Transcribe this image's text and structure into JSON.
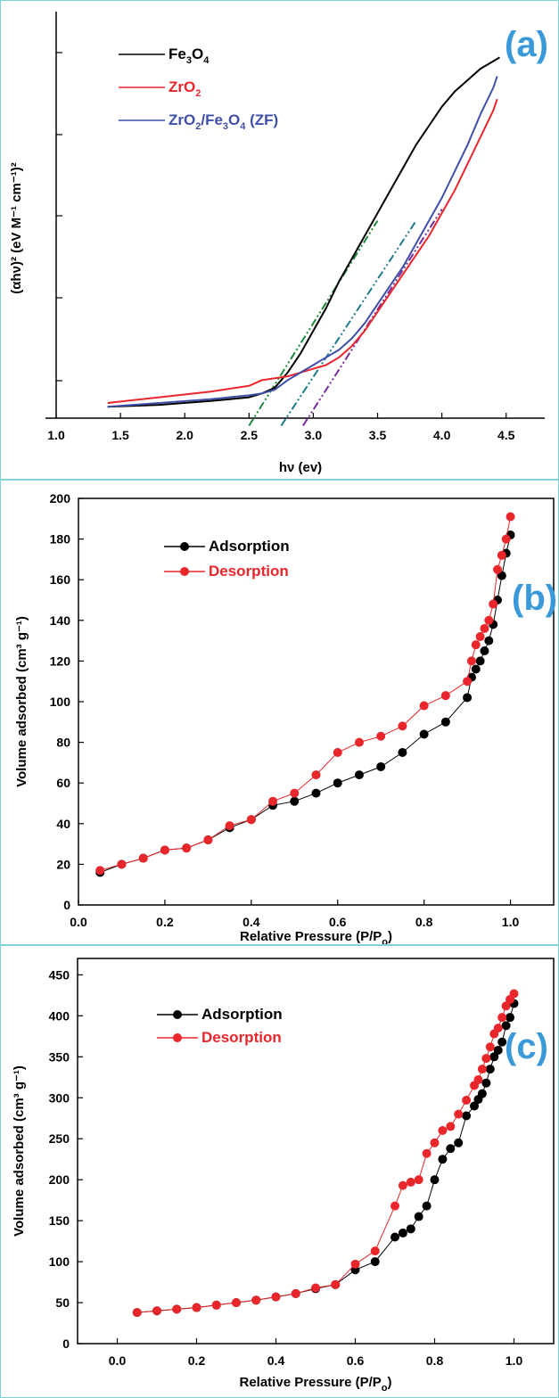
{
  "figure": {
    "panels": [
      "(a)",
      "(b)",
      "(c)"
    ]
  },
  "chart_data": [
    {
      "type": "line",
      "panel_label": "(a)",
      "xlabel": "hν (ev)",
      "ylabel": "(αhν)² (eV M⁻¹ cm⁻¹)²",
      "xlim": [
        1.0,
        4.8
      ],
      "x_ticks": [
        "1.0",
        "1.5",
        "2.0",
        "2.5",
        "3.0",
        "3.5",
        "4.0",
        "4.5"
      ],
      "y_ticks": [],
      "legend_position": "top-left",
      "series": [
        {
          "name": "Fe3O4",
          "color": "#000000",
          "x": [
            1.4,
            1.8,
            2.2,
            2.5,
            2.6,
            2.7,
            2.8,
            2.9,
            3.0,
            3.1,
            3.2,
            3.3,
            3.4,
            3.5,
            3.6,
            3.7,
            3.8,
            3.9,
            4.0,
            4.1,
            4.2,
            4.3,
            4.4,
            4.45
          ],
          "y": [
            0.03,
            0.035,
            0.045,
            0.055,
            0.065,
            0.08,
            0.12,
            0.17,
            0.23,
            0.29,
            0.36,
            0.42,
            0.48,
            0.54,
            0.6,
            0.66,
            0.72,
            0.77,
            0.82,
            0.86,
            0.89,
            0.92,
            0.94,
            0.95
          ]
        },
        {
          "name": "ZrO2",
          "color": "#e8262b",
          "x": [
            1.4,
            1.8,
            2.2,
            2.5,
            2.6,
            2.7,
            2.8,
            2.9,
            3.0,
            3.1,
            3.2,
            3.3,
            3.4,
            3.5,
            3.6,
            3.7,
            3.8,
            3.9,
            4.0,
            4.1,
            4.2,
            4.3,
            4.4,
            4.43
          ],
          "y": [
            0.04,
            0.055,
            0.07,
            0.085,
            0.1,
            0.105,
            0.11,
            0.12,
            0.13,
            0.14,
            0.16,
            0.19,
            0.23,
            0.28,
            0.33,
            0.38,
            0.43,
            0.48,
            0.54,
            0.6,
            0.67,
            0.74,
            0.81,
            0.84
          ]
        },
        {
          "name": "ZrO2/Fe3O4 (ZF)",
          "color": "#3f4fa8",
          "x": [
            1.4,
            1.8,
            2.2,
            2.5,
            2.6,
            2.7,
            2.8,
            2.9,
            3.0,
            3.1,
            3.2,
            3.3,
            3.4,
            3.5,
            3.6,
            3.7,
            3.8,
            3.9,
            4.0,
            4.1,
            4.2,
            4.3,
            4.4,
            4.43
          ],
          "y": [
            0.03,
            0.04,
            0.05,
            0.06,
            0.065,
            0.075,
            0.1,
            0.12,
            0.14,
            0.16,
            0.18,
            0.21,
            0.25,
            0.3,
            0.35,
            0.4,
            0.46,
            0.52,
            0.58,
            0.65,
            0.72,
            0.8,
            0.87,
            0.9
          ]
        }
      ],
      "tangents": [
        {
          "color": "#1a8a3a",
          "x": [
            2.5,
            3.5
          ],
          "y": [
            -0.02,
            0.52
          ]
        },
        {
          "color": "#1a7a8a",
          "x": [
            2.75,
            3.8
          ],
          "y": [
            -0.02,
            0.52
          ]
        },
        {
          "color": "#7a2a9a",
          "x": [
            2.92,
            4.0
          ],
          "y": [
            -0.02,
            0.55
          ]
        }
      ]
    },
    {
      "type": "line",
      "panel_label": "(b)",
      "xlabel": "Relative Pressure (P/Po)",
      "ylabel": "Volume adsorbed (cm³ g⁻¹)",
      "xlim": [
        0.0,
        1.1
      ],
      "ylim": [
        0,
        200
      ],
      "x_ticks": [
        "0.0",
        "0.2",
        "0.4",
        "0.6",
        "0.8",
        "1.0"
      ],
      "y_ticks": [
        "0",
        "20",
        "40",
        "60",
        "80",
        "100",
        "120",
        "140",
        "160",
        "180",
        "200"
      ],
      "legend_position": "top-left",
      "series": [
        {
          "name": "Adsorption",
          "color": "#000000",
          "x": [
            0.05,
            0.1,
            0.15,
            0.2,
            0.25,
            0.3,
            0.35,
            0.4,
            0.45,
            0.5,
            0.55,
            0.6,
            0.65,
            0.7,
            0.75,
            0.8,
            0.85,
            0.9,
            0.91,
            0.92,
            0.93,
            0.94,
            0.95,
            0.96,
            0.97,
            0.98,
            0.99,
            1.0
          ],
          "y": [
            16,
            20,
            23,
            27,
            28,
            32,
            38,
            42,
            49,
            51,
            55,
            60,
            64,
            68,
            75,
            84,
            90,
            102,
            112,
            116,
            120,
            125,
            130,
            138,
            150,
            162,
            173,
            182
          ]
        },
        {
          "name": "Desorption",
          "color": "#e8262b",
          "x": [
            0.05,
            0.1,
            0.15,
            0.2,
            0.25,
            0.3,
            0.35,
            0.4,
            0.45,
            0.5,
            0.55,
            0.6,
            0.65,
            0.7,
            0.75,
            0.8,
            0.85,
            0.9,
            0.91,
            0.92,
            0.93,
            0.94,
            0.95,
            0.96,
            0.97,
            0.98,
            0.99,
            1.0
          ],
          "y": [
            17,
            20,
            23,
            27,
            28,
            32,
            39,
            42,
            51,
            55,
            64,
            75,
            80,
            83,
            88,
            98,
            103,
            110,
            120,
            128,
            132,
            136,
            140,
            148,
            165,
            172,
            180,
            191
          ]
        }
      ]
    },
    {
      "type": "line",
      "panel_label": "(c)",
      "xlabel": "Relative Pressure (P/Po)",
      "ylabel": "Volume adsorbed (cm³ g⁻¹)",
      "xlim": [
        -0.1,
        1.1
      ],
      "ylim": [
        0,
        470
      ],
      "x_ticks": [
        "0.0",
        "0.2",
        "0.4",
        "0.6",
        "0.8",
        "1.0"
      ],
      "y_ticks": [
        "0",
        "50",
        "100",
        "150",
        "200",
        "250",
        "300",
        "350",
        "400",
        "450"
      ],
      "legend_position": "top-left",
      "series": [
        {
          "name": "Adsorption",
          "color": "#000000",
          "x": [
            0.05,
            0.1,
            0.15,
            0.2,
            0.25,
            0.3,
            0.35,
            0.4,
            0.45,
            0.5,
            0.55,
            0.6,
            0.65,
            0.7,
            0.72,
            0.74,
            0.76,
            0.78,
            0.8,
            0.82,
            0.84,
            0.86,
            0.88,
            0.9,
            0.91,
            0.92,
            0.93,
            0.94,
            0.95,
            0.96,
            0.97,
            0.98,
            0.99,
            1.0
          ],
          "y": [
            38,
            40,
            42,
            44,
            47,
            50,
            53,
            57,
            61,
            67,
            72,
            90,
            100,
            130,
            135,
            140,
            155,
            168,
            200,
            225,
            238,
            245,
            278,
            290,
            298,
            305,
            318,
            335,
            350,
            358,
            368,
            388,
            398,
            415
          ]
        },
        {
          "name": "Desorption",
          "color": "#e8262b",
          "x": [
            0.05,
            0.1,
            0.15,
            0.2,
            0.25,
            0.3,
            0.35,
            0.4,
            0.45,
            0.5,
            0.55,
            0.6,
            0.65,
            0.7,
            0.72,
            0.74,
            0.76,
            0.78,
            0.8,
            0.82,
            0.84,
            0.86,
            0.88,
            0.9,
            0.91,
            0.92,
            0.93,
            0.94,
            0.95,
            0.96,
            0.97,
            0.98,
            0.99,
            1.0
          ],
          "y": [
            38,
            40,
            42,
            44,
            47,
            50,
            53,
            57,
            61,
            68,
            72,
            97,
            113,
            168,
            193,
            197,
            200,
            232,
            245,
            260,
            265,
            280,
            297,
            315,
            322,
            335,
            348,
            362,
            378,
            385,
            398,
            412,
            420,
            427
          ]
        }
      ]
    }
  ]
}
